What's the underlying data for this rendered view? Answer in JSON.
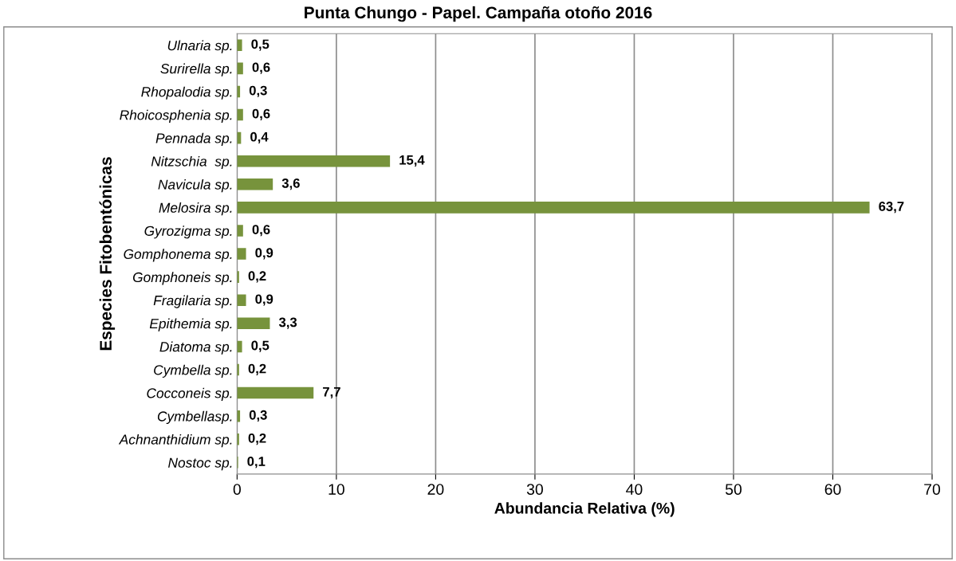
{
  "chart_data": {
    "type": "bar",
    "orientation": "horizontal",
    "title": "Punta Chungo - Papel. Campaña otoño 2016",
    "xlabel": "Abundancia Relativa (%)",
    "ylabel": "Especies Fitobentónicas",
    "categories": [
      "Ulnaria sp.",
      "Surirella sp.",
      "Rhopalodia sp.",
      "Rhoicosphenia sp.",
      "Pennada sp.",
      "Nitzschia  sp.",
      "Navicula sp.",
      "Melosira sp.",
      "Gyrozigma sp.",
      "Gomphonema sp.",
      "Gomphoneis sp.",
      "Fragilaria sp.",
      "Epithemia sp.",
      "Diatoma sp.",
      "Cymbella sp.",
      "Cocconeis sp.",
      "Cymbellasp.",
      "Achnanthidium sp.",
      "Nostoc sp."
    ],
    "values": [
      0.5,
      0.6,
      0.3,
      0.6,
      0.4,
      15.4,
      3.6,
      63.7,
      0.6,
      0.9,
      0.2,
      0.9,
      3.3,
      0.5,
      0.2,
      7.7,
      0.3,
      0.2,
      0.1
    ],
    "value_labels": [
      "0,5",
      "0,6",
      "0,3",
      "0,6",
      "0,4",
      "15,4",
      "3,6",
      "63,7",
      "0,6",
      "0,9",
      "0,2",
      "0,9",
      "3,3",
      "0,5",
      "0,2",
      "7,7",
      "0,3",
      "0,2",
      "0,1"
    ],
    "color": "#77933c",
    "xlim": [
      0,
      70
    ],
    "xticks": [
      0,
      10,
      20,
      30,
      40,
      50,
      60,
      70
    ],
    "grid": "x"
  }
}
